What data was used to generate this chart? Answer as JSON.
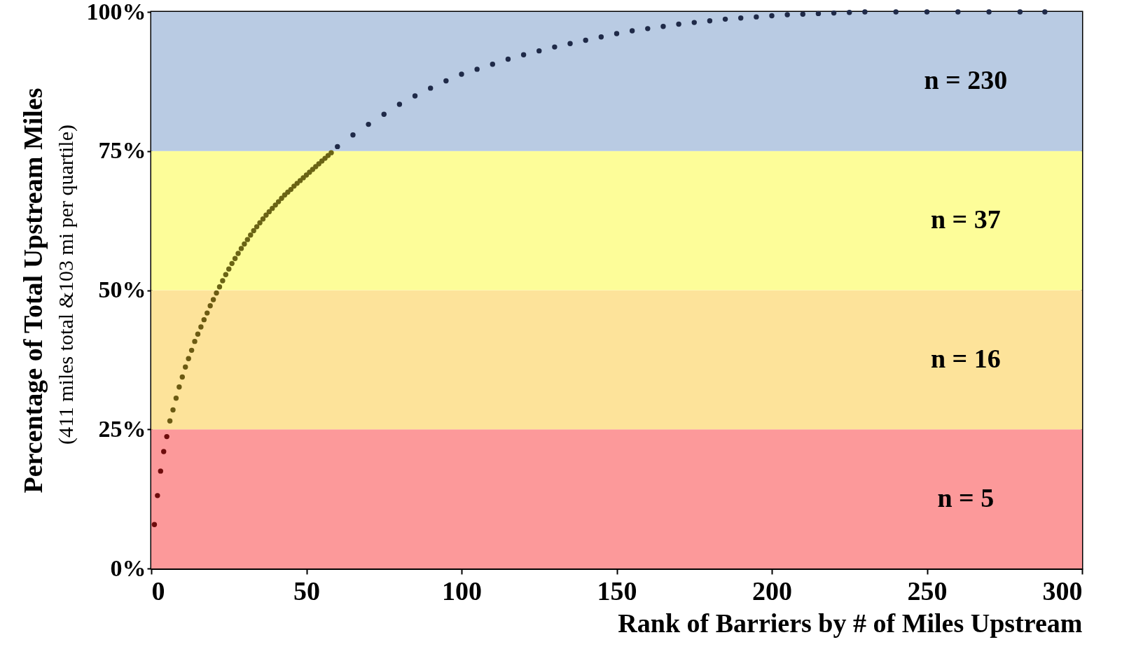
{
  "chart_data": {
    "type": "scatter",
    "xlabel": "Rank of Barriers by # of Miles Upstream",
    "ylabel": "Percentage of Total Upstream Miles",
    "annotations": [
      "(411 miles total &103 mi per quartile)"
    ],
    "xlim": [
      0,
      300
    ],
    "xticks": [
      0,
      50,
      100,
      150,
      200,
      250,
      300
    ],
    "ylim": [
      0,
      100
    ],
    "yticks": [
      {
        "value": 0,
        "label": "0%"
      },
      {
        "value": 25,
        "label": "25%"
      },
      {
        "value": 50,
        "label": "50%"
      },
      {
        "value": 75,
        "label": "75%"
      },
      {
        "value": 100,
        "label": "100%"
      }
    ],
    "grid": false,
    "marker": "circle",
    "bands": [
      {
        "axis": "y",
        "from": 0,
        "to": 25,
        "label": "n = 5",
        "color": "#fc999a"
      },
      {
        "axis": "y",
        "from": 25,
        "to": 50,
        "label": "n = 16",
        "color": "#fde39a"
      },
      {
        "axis": "y",
        "from": 50,
        "to": 75,
        "label": "n = 37",
        "color": "#fdfd99"
      },
      {
        "axis": "y",
        "from": 75,
        "to": 100,
        "label": "n = 230",
        "color": "#b9cbe3"
      }
    ],
    "series": [
      {
        "color": "#6e0c0c",
        "x": [
          1,
          2,
          3,
          4,
          5
        ],
        "values": [
          7.9,
          13.1,
          17.5,
          21,
          23.7
        ]
      },
      {
        "color": "#6b5a12",
        "x": [
          6,
          7,
          8,
          9,
          10,
          11,
          12,
          13,
          14,
          15,
          16,
          17,
          18,
          19,
          20,
          21
        ],
        "values": [
          26.5,
          28.5,
          30.6,
          32.6,
          34.4,
          36.2,
          37.7,
          39.2,
          40.8,
          42.1,
          43.4,
          44.7,
          45.9,
          47.2,
          48.3,
          49.5
        ]
      },
      {
        "color": "#6a6414",
        "x": [
          22,
          23,
          24,
          25,
          26,
          27,
          28,
          29,
          30,
          31,
          32,
          33,
          34,
          35,
          36,
          37,
          38,
          39,
          40,
          41,
          42,
          43,
          44,
          45,
          46,
          47,
          48,
          49,
          50,
          51,
          52,
          53,
          54,
          55,
          56,
          57,
          58
        ],
        "values": [
          50.6,
          51.7,
          52.8,
          53.8,
          54.8,
          55.7,
          56.6,
          57.5,
          58.3,
          59.1,
          59.9,
          60.7,
          61.4,
          62.1,
          62.8,
          63.5,
          64.1,
          64.7,
          65.3,
          65.9,
          66.5,
          67.1,
          67.6,
          68.1,
          68.7,
          69.2,
          69.7,
          70.2,
          70.7,
          71.2,
          71.7,
          72.2,
          72.7,
          73.2,
          73.7,
          74.2,
          74.7
        ]
      },
      {
        "color": "#1f2a48",
        "x": [
          60,
          65,
          70,
          75,
          80,
          85,
          90,
          95,
          100,
          105,
          110,
          115,
          120,
          125,
          130,
          135,
          140,
          145,
          150,
          155,
          160,
          165,
          170,
          175,
          180,
          185,
          190,
          195,
          200,
          205,
          210,
          215,
          220,
          225,
          230,
          240,
          250,
          260,
          270,
          280,
          288
        ],
        "values": [
          75.8,
          77.9,
          79.8,
          81.6,
          83.4,
          84.9,
          86.3,
          87.6,
          88.8,
          89.7,
          90.6,
          91.5,
          92.3,
          93.0,
          93.7,
          94.3,
          94.9,
          95.5,
          96.1,
          96.6,
          97.0,
          97.4,
          97.8,
          98.1,
          98.4,
          98.7,
          98.9,
          99.1,
          99.3,
          99.5,
          99.6,
          99.7,
          99.8,
          99.9,
          100,
          100,
          100,
          100,
          100,
          100,
          100
        ]
      }
    ]
  }
}
